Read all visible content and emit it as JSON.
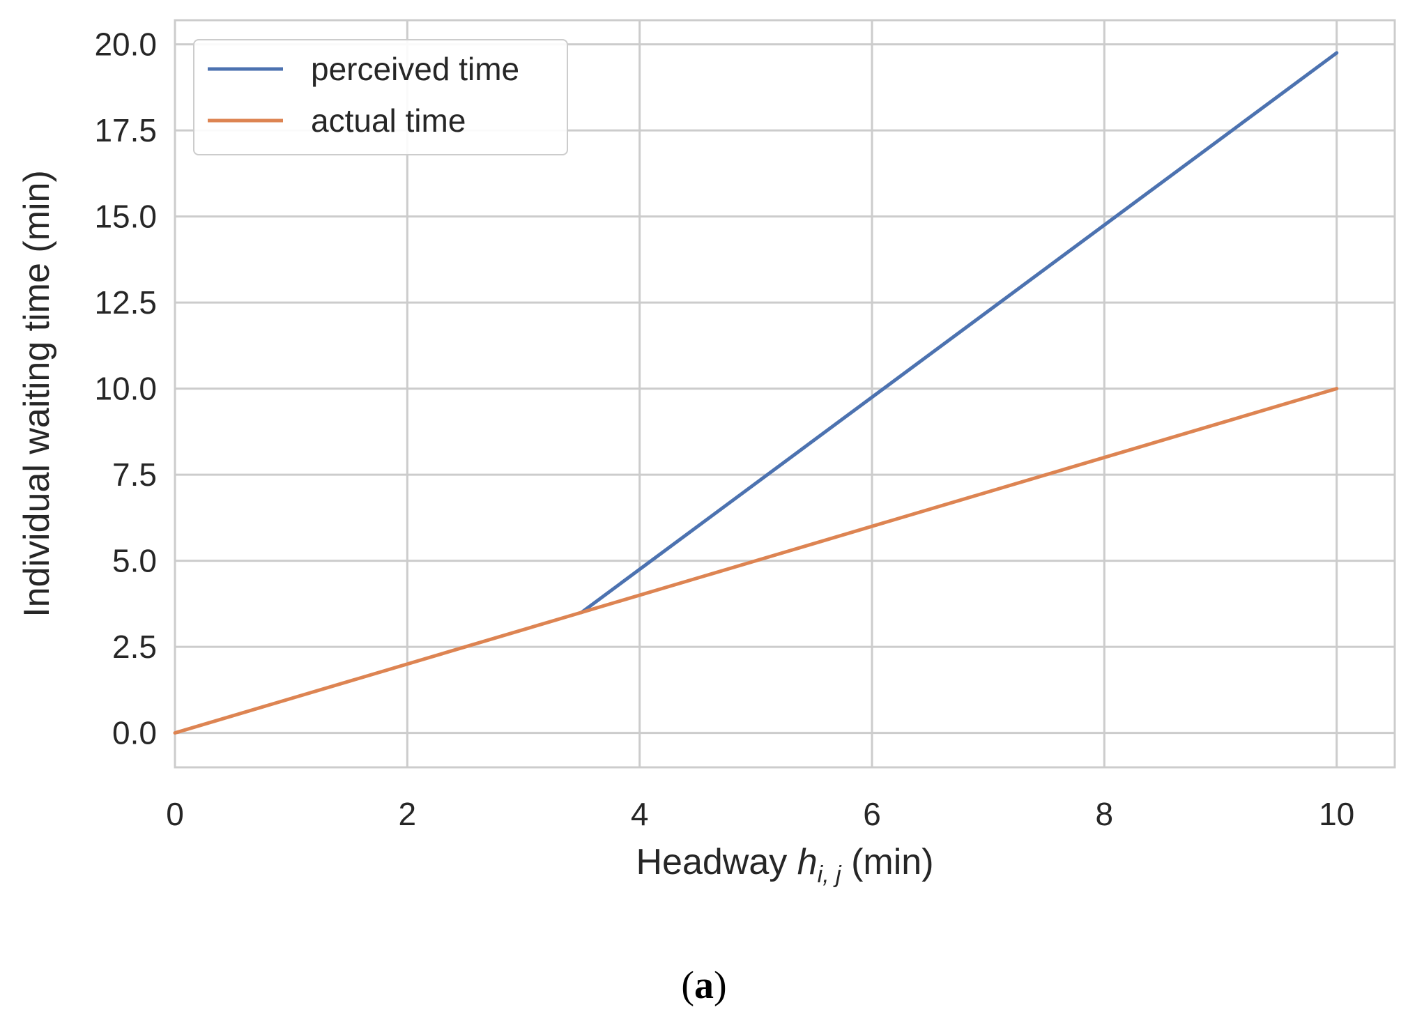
{
  "chart_data": {
    "type": "line",
    "title": "",
    "xlabel": {
      "prefix": "Headway ",
      "symbol": "h",
      "subscript": "i, j",
      "suffix": " (min)"
    },
    "ylabel": "Individual waiting time (min)",
    "xlim": [
      0,
      10.5
    ],
    "ylim": [
      -1.0,
      20.7
    ],
    "xticks": [
      0,
      2,
      4,
      6,
      8,
      10
    ],
    "xtick_labels": [
      "0",
      "2",
      "4",
      "6",
      "8",
      "10"
    ],
    "yticks": [
      0,
      2.5,
      5,
      7.5,
      10,
      12.5,
      15,
      17.5,
      20
    ],
    "ytick_labels": [
      "0.0",
      "2.5",
      "5.0",
      "7.5",
      "10.0",
      "12.5",
      "15.0",
      "17.5",
      "20.0"
    ],
    "grid": true,
    "legend_position": "upper-left",
    "series": [
      {
        "name": "perceived time",
        "color": "#4c72b0",
        "x": [
          3.5,
          10
        ],
        "y": [
          3.5,
          19.75
        ]
      },
      {
        "name": "actual time",
        "color": "#dd8452",
        "x": [
          0,
          10
        ],
        "y": [
          0,
          10
        ]
      }
    ]
  },
  "caption": {
    "open": "(",
    "letter": "a",
    "close": ")"
  }
}
